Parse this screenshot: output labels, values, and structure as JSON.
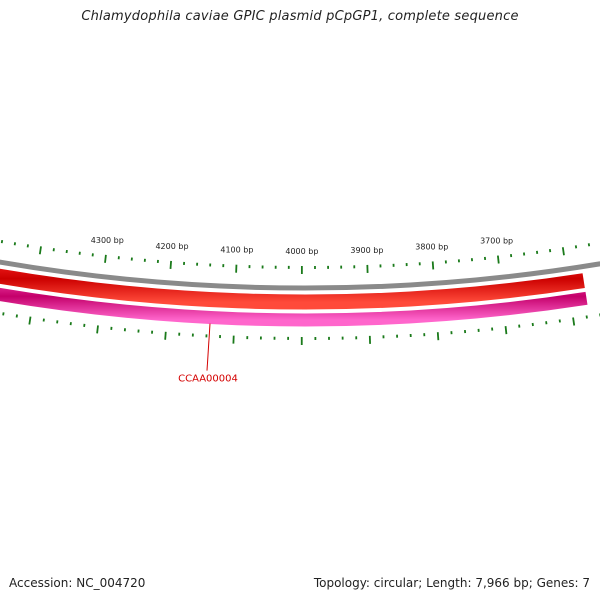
{
  "title": "Chlamydophila caviae GPIC plasmid pCpGP1, complete sequence",
  "footer": {
    "accession": "Accession: NC_004720",
    "summary": "Topology: circular; Length: 7,966 bp; Genes: 7"
  },
  "map": {
    "topology": "circular",
    "length_bp": 7966,
    "tick_labels": [
      "4300 bp",
      "4200 bp",
      "4100 bp",
      "4000 bp",
      "3900 bp",
      "3800 bp",
      "3700 bp"
    ],
    "genes": [
      {
        "label": "CCAA00004",
        "color": "#d40000"
      }
    ],
    "colors": {
      "backbone": "#8a8a8a",
      "forward_track": "#ee0000",
      "reverse_track": "#ee1188",
      "ticks": "#1a7a1a",
      "gene_label": "#d40000"
    }
  }
}
